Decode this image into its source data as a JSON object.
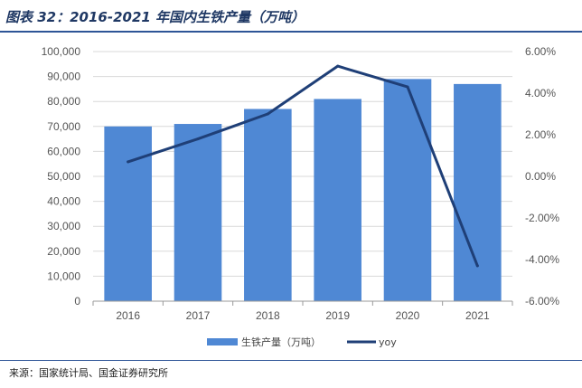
{
  "header": {
    "title": "图表 32：2016-2021 年国内生铁产量（万吨）"
  },
  "footer": {
    "source": "来源：国家统计局、国金证券研究所"
  },
  "colors": {
    "bar": "#4f88d4",
    "line": "#1f3f77",
    "grid": "#d9d9d9",
    "accent": "#2e5597"
  },
  "chart_data": {
    "type": "bar",
    "title": "2016-2021 年国内生铁产量（万吨）",
    "categories": [
      "2016",
      "2017",
      "2018",
      "2019",
      "2020",
      "2021"
    ],
    "series": [
      {
        "name": "生铁产量（万吨）",
        "type": "bar",
        "axis": "left",
        "values": [
          70000,
          71000,
          77000,
          81000,
          89000,
          87000
        ]
      },
      {
        "name": "yoy",
        "type": "line",
        "axis": "right",
        "values": [
          0.7,
          1.8,
          3.0,
          5.3,
          4.3,
          -4.3
        ]
      }
    ],
    "ylim_left": [
      0,
      100000
    ],
    "ylim_right": [
      -6,
      6
    ],
    "left_ticks": [
      "0",
      "10,000",
      "20,000",
      "30,000",
      "40,000",
      "50,000",
      "60,000",
      "70,000",
      "80,000",
      "90,000",
      "100,000"
    ],
    "right_ticks": [
      "-6.00%",
      "-4.00%",
      "-2.00%",
      "0.00%",
      "2.00%",
      "4.00%",
      "6.00%"
    ],
    "legend": [
      "生铁产量（万吨）",
      "yoy"
    ],
    "legend_position": "bottom",
    "grid": true
  }
}
